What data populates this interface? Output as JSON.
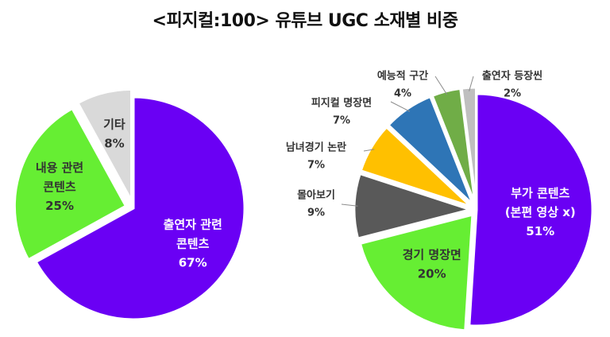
{
  "title": "<피지컬:100> 유튜브 UGC 소재별 비중",
  "chart_data": [
    {
      "type": "pie",
      "title": "",
      "slices": [
        {
          "label_lines": [
            "출연자 관련",
            "콘텐츠"
          ],
          "value": 67,
          "value_label": "67%",
          "color": "#6a00f4",
          "label_color": "#ffffff"
        },
        {
          "label_lines": [
            "내용 관련",
            "콘텐츠"
          ],
          "value": 25,
          "value_label": "25%",
          "color": "#66ee33",
          "label_color": "#333333"
        },
        {
          "label_lines": [
            "기타"
          ],
          "value": 8,
          "value_label": "8%",
          "color": "#d9d9d9",
          "label_color": "#333333"
        }
      ]
    },
    {
      "type": "pie",
      "title": "",
      "slices": [
        {
          "label_lines": [
            "부가 콘텐츠",
            "(본편 영상 x)"
          ],
          "value": 51,
          "value_label": "51%",
          "color": "#6a00f4",
          "label_color": "#ffffff"
        },
        {
          "label_lines": [
            "경기 명장면"
          ],
          "value": 20,
          "value_label": "20%",
          "color": "#66ee33",
          "label_color": "#333333"
        },
        {
          "label_lines": [
            "몰아보기"
          ],
          "value": 9,
          "value_label": "9%",
          "color": "#595959",
          "label_color": "#333333"
        },
        {
          "label_lines": [
            "남녀경기 논란"
          ],
          "value": 7,
          "value_label": "7%",
          "color": "#ffc000",
          "label_color": "#333333"
        },
        {
          "label_lines": [
            "피지컬 명장면"
          ],
          "value": 7,
          "value_label": "7%",
          "color": "#2e75b6",
          "label_color": "#333333"
        },
        {
          "label_lines": [
            "예능적 구간"
          ],
          "value": 4,
          "value_label": "4%",
          "color": "#70ad47",
          "label_color": "#333333"
        },
        {
          "label_lines": [
            "출연자 등장씬"
          ],
          "value": 2,
          "value_label": "2%",
          "color": "#bfbfbf",
          "label_color": "#333333"
        }
      ]
    }
  ]
}
